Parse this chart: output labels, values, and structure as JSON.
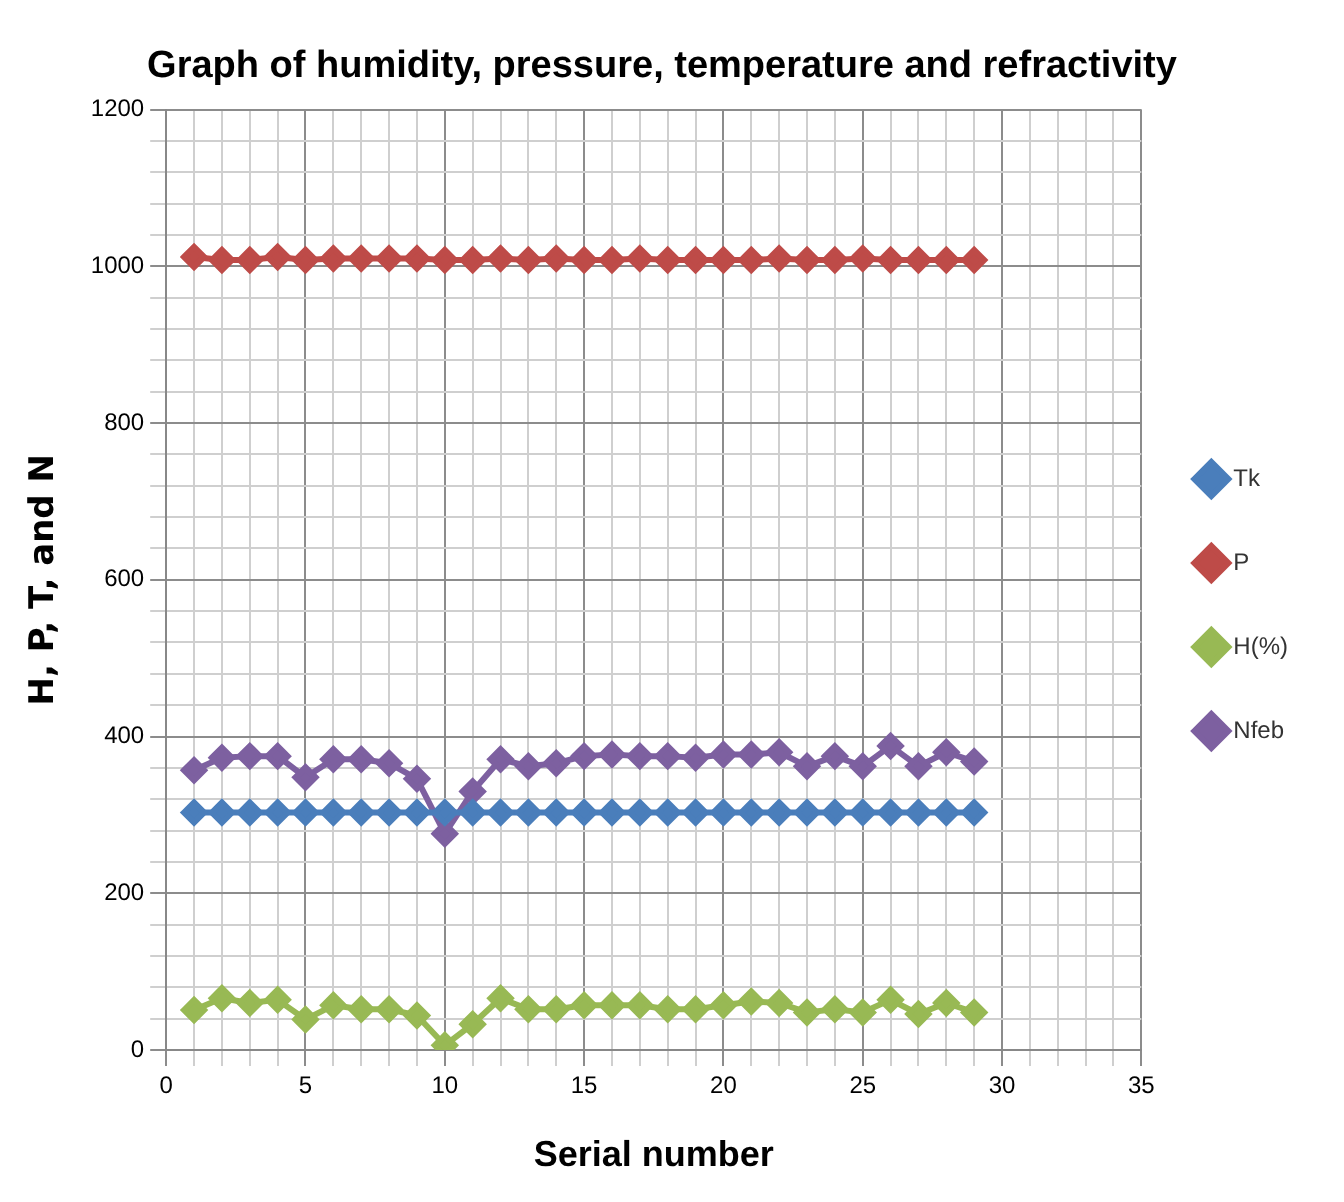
{
  "chart_data": {
    "type": "line",
    "title": "Graph of humidity, pressure, temperature and refractivity",
    "xlabel": "Serial number",
    "ylabel": "H, P, T, and N",
    "x": [
      1,
      2,
      3,
      4,
      5,
      6,
      7,
      8,
      9,
      10,
      11,
      12,
      13,
      14,
      15,
      16,
      17,
      18,
      19,
      20,
      21,
      22,
      23,
      24,
      25,
      26,
      27,
      28,
      29
    ],
    "series": [
      {
        "name": "Tk",
        "color": "#4a7ebb",
        "values": [
          303,
          303,
          303,
          303,
          303,
          303,
          303,
          303,
          303,
          303,
          303,
          303,
          303,
          303,
          303,
          303,
          303,
          303,
          303,
          303,
          303,
          303,
          303,
          303,
          303,
          303,
          303,
          303,
          303
        ]
      },
      {
        "name": "P",
        "color": "#be4b48",
        "values": [
          1012,
          1008,
          1008,
          1012,
          1008,
          1010,
          1010,
          1010,
          1010,
          1008,
          1008,
          1010,
          1008,
          1010,
          1008,
          1008,
          1010,
          1008,
          1008,
          1008,
          1008,
          1010,
          1008,
          1008,
          1010,
          1008,
          1008,
          1008,
          1008
        ]
      },
      {
        "name": "H(%)",
        "color": "#98b954",
        "values": [
          51,
          66,
          60,
          64,
          39,
          57,
          52,
          52,
          44,
          6,
          33,
          66,
          52,
          52,
          57,
          57,
          57,
          52,
          52,
          57,
          62,
          60,
          48,
          52,
          48,
          64,
          46,
          60,
          48
        ]
      },
      {
        "name": "Nfeb",
        "color": "#7d60a0",
        "values": [
          357,
          373,
          375,
          375,
          348,
          371,
          371,
          366,
          346,
          276,
          330,
          371,
          362,
          366,
          375,
          377,
          375,
          375,
          373,
          377,
          377,
          380,
          362,
          375,
          362,
          388,
          362,
          380,
          368
        ]
      }
    ],
    "xlim": [
      0,
      35
    ],
    "xticks": [
      0,
      {
        "value": 1,
        "label": null
      },
      {
        "value": 2,
        "label": null
      },
      {
        "value": 3,
        "label": null
      },
      {
        "value": 4,
        "label": null
      },
      5,
      {
        "value": 6,
        "label": null
      },
      {
        "value": 7,
        "label": null
      },
      {
        "value": 8,
        "label": null
      },
      {
        "value": 9,
        "label": null
      },
      10,
      {
        "value": 11,
        "label": null
      },
      {
        "value": 12,
        "label": null
      },
      {
        "value": 13,
        "label": null
      },
      {
        "value": 14,
        "label": null
      },
      15,
      {
        "value": 16,
        "label": null
      },
      {
        "value": 17,
        "label": null
      },
      {
        "value": 18,
        "label": null
      },
      {
        "value": 19,
        "label": null
      },
      20,
      {
        "value": 21,
        "label": null
      },
      {
        "value": 22,
        "label": null
      },
      {
        "value": 23,
        "label": null
      },
      {
        "value": 24,
        "label": null
      },
      25,
      {
        "value": 26,
        "label": null
      },
      {
        "value": 27,
        "label": null
      },
      {
        "value": 28,
        "label": null
      },
      {
        "value": 29,
        "label": null
      },
      30,
      {
        "value": 31,
        "label": null
      },
      {
        "value": 32,
        "label": null
      },
      {
        "value": 33,
        "label": null
      },
      {
        "value": 34,
        "label": null
      },
      35
    ],
    "ylim": [
      0,
      1200
    ],
    "yticks": [
      0,
      {
        "value": 40,
        "label": null
      },
      {
        "value": 80,
        "label": null
      },
      {
        "value": 120,
        "label": null
      },
      {
        "value": 160,
        "label": null
      },
      200,
      {
        "value": 240,
        "label": null
      },
      {
        "value": 280,
        "label": null
      },
      {
        "value": 320,
        "label": null
      },
      {
        "value": 360,
        "label": null
      },
      400,
      {
        "value": 440,
        "label": null
      },
      {
        "value": 480,
        "label": null
      },
      {
        "value": 520,
        "label": null
      },
      {
        "value": 560,
        "label": null
      },
      600,
      {
        "value": 640,
        "label": null
      },
      {
        "value": 680,
        "label": null
      },
      {
        "value": 720,
        "label": null
      },
      {
        "value": 760,
        "label": null
      },
      800,
      {
        "value": 840,
        "label": null
      },
      {
        "value": 880,
        "label": null
      },
      {
        "value": 920,
        "label": null
      },
      {
        "value": 960,
        "label": null
      },
      1000,
      {
        "value": 1040,
        "label": null
      },
      {
        "value": 1080,
        "label": null
      },
      {
        "value": 1120,
        "label": null
      },
      {
        "value": 1160,
        "label": null
      },
      1200
    ],
    "grid": true,
    "legend": "right",
    "marker": "diamond",
    "line_style": "solid"
  }
}
